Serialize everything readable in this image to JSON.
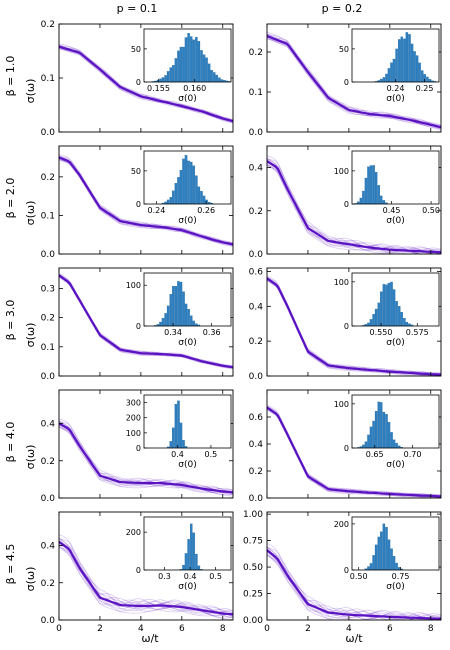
{
  "figure": {
    "column_headers": [
      "p = 0.1",
      "p = 0.2"
    ],
    "row_labels": [
      "β = 1.0",
      "β = 2.0",
      "β = 3.0",
      "β = 4.0",
      "β = 4.5"
    ],
    "ylabel": "σ(ω)",
    "xlabel": "ω/t",
    "inset_xlabel": "σ(0)",
    "line_color": "#5a12c2",
    "hist_color": "#2e7fc0"
  },
  "chart_data": [
    {
      "type": "line",
      "row": 0,
      "col": 0,
      "xlim": [
        0,
        8.5
      ],
      "ylim": [
        0,
        0.2
      ],
      "xticks": [
        0,
        2,
        4,
        6,
        8
      ],
      "yticks": [
        0.0,
        0.1,
        0.2
      ],
      "ytick_labels": [
        "0.0",
        "0.1",
        "0.2"
      ],
      "show_xtick_labels": false,
      "series": [
        {
          "x": [
            0,
            1,
            2,
            3,
            4,
            5,
            6,
            7,
            8,
            8.5
          ],
          "y": [
            0.158,
            0.147,
            0.116,
            0.083,
            0.066,
            0.057,
            0.048,
            0.038,
            0.025,
            0.02
          ]
        }
      ],
      "spread": 0.004,
      "inset": {
        "type": "histogram",
        "xlim": [
          0.153,
          0.165
        ],
        "ylim": [
          0,
          80
        ],
        "xticks": [
          0.155,
          0.16
        ],
        "xtick_labels": [
          "0.155",
          "0.160"
        ],
        "yticks": [
          0,
          50
        ],
        "mean": 0.1595,
        "sd": 0.0018,
        "peak": 75
      }
    },
    {
      "type": "line",
      "row": 0,
      "col": 1,
      "xlim": [
        0,
        8.5
      ],
      "ylim": [
        0,
        0.27
      ],
      "xticks": [
        0,
        2,
        4,
        6,
        8
      ],
      "yticks": [
        0.0,
        0.1,
        0.2
      ],
      "ytick_labels": [
        "0.0",
        "0.1",
        "0.2"
      ],
      "show_xtick_labels": false,
      "series": [
        {
          "x": [
            0,
            1,
            2,
            3,
            4,
            5,
            6,
            7,
            8,
            8.5
          ],
          "y": [
            0.24,
            0.22,
            0.15,
            0.085,
            0.055,
            0.045,
            0.04,
            0.03,
            0.018,
            0.012
          ]
        }
      ],
      "spread": 0.007,
      "inset": {
        "type": "histogram",
        "xlim": [
          0.225,
          0.255
        ],
        "ylim": [
          0,
          80
        ],
        "xticks": [
          0.24,
          0.25
        ],
        "xtick_labels": [
          "0.24",
          "0.25"
        ],
        "yticks": [
          0,
          50
        ],
        "mean": 0.2435,
        "sd": 0.0035,
        "peak": 78
      }
    },
    {
      "type": "line",
      "row": 1,
      "col": 0,
      "xlim": [
        0,
        8.5
      ],
      "ylim": [
        0,
        0.28
      ],
      "xticks": [
        0,
        2,
        4,
        6,
        8
      ],
      "yticks": [
        0.0,
        0.1,
        0.2
      ],
      "ytick_labels": [
        "0.0",
        "0.1",
        "0.2"
      ],
      "show_xtick_labels": false,
      "series": [
        {
          "x": [
            0,
            0.5,
            1,
            2,
            3,
            4,
            5,
            6,
            7,
            8,
            8.5
          ],
          "y": [
            0.25,
            0.24,
            0.205,
            0.12,
            0.085,
            0.075,
            0.07,
            0.062,
            0.045,
            0.03,
            0.025
          ]
        }
      ],
      "spread": 0.006,
      "inset": {
        "type": "histogram",
        "xlim": [
          0.235,
          0.27
        ],
        "ylim": [
          0,
          80
        ],
        "xticks": [
          0.24,
          0.26
        ],
        "xtick_labels": [
          "0.24",
          "0.26"
        ],
        "yticks": [
          0,
          50
        ],
        "mean": 0.2525,
        "sd": 0.0035,
        "peak": 76
      }
    },
    {
      "type": "line",
      "row": 1,
      "col": 1,
      "xlim": [
        0,
        8.5
      ],
      "ylim": [
        0,
        0.5
      ],
      "xticks": [
        0,
        2,
        4,
        6,
        8
      ],
      "yticks": [
        0.0,
        0.2,
        0.4
      ],
      "ytick_labels": [
        "0.0",
        "0.2",
        "0.4"
      ],
      "show_xtick_labels": false,
      "series": [
        {
          "x": [
            0,
            0.5,
            1,
            2,
            3,
            4,
            5,
            6,
            7,
            8,
            8.5
          ],
          "y": [
            0.43,
            0.4,
            0.3,
            0.12,
            0.06,
            0.045,
            0.03,
            0.02,
            0.015,
            0.01,
            0.008
          ]
        }
      ],
      "spread": 0.02,
      "inset": {
        "type": "histogram",
        "xlim": [
          0.4,
          0.51
        ],
        "ylim": [
          0,
          160
        ],
        "xticks": [
          0.45,
          0.5
        ],
        "xtick_labels": [
          "0.45",
          "0.50"
        ],
        "yticks": [
          0,
          100
        ],
        "mean": 0.425,
        "sd": 0.007,
        "peak": 135
      }
    },
    {
      "type": "line",
      "row": 2,
      "col": 0,
      "xlim": [
        0,
        8.5
      ],
      "ylim": [
        0,
        0.37
      ],
      "xticks": [
        0,
        2,
        4,
        6,
        8
      ],
      "yticks": [
        0.0,
        0.1,
        0.2,
        0.3
      ],
      "ytick_labels": [
        "0.0",
        "0.1",
        "0.2",
        "0.3"
      ],
      "show_xtick_labels": false,
      "series": [
        {
          "x": [
            0,
            0.5,
            1,
            2,
            3,
            4,
            5,
            6,
            7,
            8,
            8.5
          ],
          "y": [
            0.345,
            0.32,
            0.26,
            0.14,
            0.09,
            0.078,
            0.075,
            0.07,
            0.05,
            0.035,
            0.03
          ]
        }
      ],
      "spread": 0.006,
      "inset": {
        "type": "histogram",
        "xlim": [
          0.325,
          0.37
        ],
        "ylim": [
          0,
          130
        ],
        "xticks": [
          0.34,
          0.36
        ],
        "xtick_labels": [
          "0.34",
          "0.36"
        ],
        "yticks": [
          0,
          100
        ],
        "mean": 0.3425,
        "sd": 0.004,
        "peak": 118
      }
    },
    {
      "type": "line",
      "row": 2,
      "col": 1,
      "xlim": [
        0,
        8.5
      ],
      "ylim": [
        0,
        0.62
      ],
      "xticks": [
        0,
        2,
        4,
        6,
        8
      ],
      "yticks": [
        0.0,
        0.2,
        0.4,
        0.6
      ],
      "ytick_labels": [
        "0.0",
        "0.2",
        "0.4",
        "0.6"
      ],
      "show_xtick_labels": false,
      "series": [
        {
          "x": [
            0,
            0.5,
            1,
            2,
            3,
            4,
            5,
            6,
            7,
            8,
            8.5
          ],
          "y": [
            0.56,
            0.52,
            0.4,
            0.14,
            0.06,
            0.045,
            0.035,
            0.025,
            0.018,
            0.01,
            0.008
          ]
        }
      ],
      "spread": 0.012,
      "inset": {
        "type": "histogram",
        "xlim": [
          0.53,
          0.59
        ],
        "ylim": [
          0,
          120
        ],
        "xticks": [
          0.55,
          0.575
        ],
        "xtick_labels": [
          "0.550",
          "0.575"
        ],
        "yticks": [
          0,
          100
        ],
        "mean": 0.555,
        "sd": 0.006,
        "peak": 108
      }
    },
    {
      "type": "line",
      "row": 3,
      "col": 0,
      "xlim": [
        0,
        8.5
      ],
      "ylim": [
        0,
        0.58
      ],
      "xticks": [
        0,
        2,
        4,
        6,
        8
      ],
      "yticks": [
        0.0,
        0.2,
        0.4
      ],
      "ytick_labels": [
        "0.0",
        "0.2",
        "0.4"
      ],
      "show_xtick_labels": false,
      "series": [
        {
          "x": [
            0,
            0.5,
            1,
            2,
            3,
            4,
            5,
            6,
            7,
            8,
            8.5
          ],
          "y": [
            0.4,
            0.37,
            0.28,
            0.12,
            0.085,
            0.08,
            0.08,
            0.07,
            0.05,
            0.035,
            0.03
          ]
        }
      ],
      "spread": 0.02,
      "inset": {
        "type": "histogram",
        "xlim": [
          0.3,
          0.56
        ],
        "ylim": [
          0,
          350
        ],
        "xticks": [
          0.4,
          0.5
        ],
        "xtick_labels": [
          "0.4",
          "0.5"
        ],
        "yticks": [
          0,
          100,
          200,
          300
        ],
        "mean": 0.4,
        "sd": 0.01,
        "peak": 330
      }
    },
    {
      "type": "line",
      "row": 3,
      "col": 1,
      "xlim": [
        0,
        8.5
      ],
      "ylim": [
        0,
        0.8
      ],
      "xticks": [
        0,
        2,
        4,
        6,
        8
      ],
      "yticks": [
        0.0,
        0.2,
        0.4,
        0.6
      ],
      "ytick_labels": [
        "0.0",
        "0.2",
        "0.4",
        "0.6"
      ],
      "show_xtick_labels": false,
      "series": [
        {
          "x": [
            0,
            0.5,
            1,
            2,
            3,
            4,
            5,
            6,
            7,
            8,
            8.5
          ],
          "y": [
            0.67,
            0.62,
            0.47,
            0.16,
            0.065,
            0.05,
            0.04,
            0.03,
            0.022,
            0.015,
            0.012
          ]
        }
      ],
      "spread": 0.015,
      "inset": {
        "type": "histogram",
        "xlim": [
          0.62,
          0.735
        ],
        "ylim": [
          0,
          120
        ],
        "xticks": [
          0.65,
          0.7
        ],
        "xtick_labels": [
          "0.65",
          "0.70"
        ],
        "yticks": [
          0,
          100
        ],
        "mean": 0.658,
        "sd": 0.01,
        "peak": 108
      }
    },
    {
      "type": "line",
      "row": 4,
      "col": 0,
      "xlim": [
        0,
        8.5
      ],
      "ylim": [
        0,
        0.58
      ],
      "xticks": [
        0,
        2,
        4,
        6,
        8
      ],
      "yticks": [
        0.0,
        0.2,
        0.4
      ],
      "ytick_labels": [
        "0.0",
        "0.2",
        "0.4"
      ],
      "show_xtick_labels": true,
      "xtick_labels": [
        "0",
        "2",
        "4",
        "6",
        "8"
      ],
      "series": [
        {
          "x": [
            0,
            0.5,
            1,
            2,
            3,
            4,
            5,
            6,
            7,
            8,
            8.5
          ],
          "y": [
            0.42,
            0.38,
            0.28,
            0.12,
            0.08,
            0.075,
            0.078,
            0.07,
            0.052,
            0.035,
            0.03
          ]
        }
      ],
      "spread": 0.03,
      "inset": {
        "type": "histogram",
        "xlim": [
          0.22,
          0.56
        ],
        "ylim": [
          0,
          280
        ],
        "xticks": [
          0.3,
          0.4,
          0.5
        ],
        "xtick_labels": [
          "0.3",
          "0.4",
          "0.5"
        ],
        "yticks": [
          0,
          200
        ],
        "mean": 0.405,
        "sd": 0.014,
        "peak": 255
      }
    },
    {
      "type": "line",
      "row": 4,
      "col": 1,
      "xlim": [
        0,
        8.5
      ],
      "ylim": [
        0,
        1.02
      ],
      "xticks": [
        0,
        2,
        4,
        6,
        8
      ],
      "yticks": [
        0.0,
        0.25,
        0.5,
        0.75,
        1.0
      ],
      "ytick_labels": [
        "0.00",
        "0.25",
        "0.50",
        "0.75",
        "1.00"
      ],
      "show_xtick_labels": true,
      "xtick_labels": [
        "0",
        "2",
        "4",
        "6",
        "8"
      ],
      "series": [
        {
          "x": [
            0,
            0.5,
            1,
            2,
            3,
            4,
            5,
            6,
            7,
            8,
            8.5
          ],
          "y": [
            0.66,
            0.58,
            0.42,
            0.15,
            0.07,
            0.05,
            0.04,
            0.03,
            0.022,
            0.015,
            0.012
          ]
        }
      ],
      "spread": 0.05,
      "inset": {
        "type": "histogram",
        "xlim": [
          0.46,
          0.98
        ],
        "ylim": [
          0,
          230
        ],
        "xticks": [
          0.5,
          0.75
        ],
        "xtick_labels": [
          "0.50",
          "0.75"
        ],
        "yticks": [
          0,
          200
        ],
        "mean": 0.65,
        "sd": 0.04,
        "peak": 205
      }
    }
  ]
}
